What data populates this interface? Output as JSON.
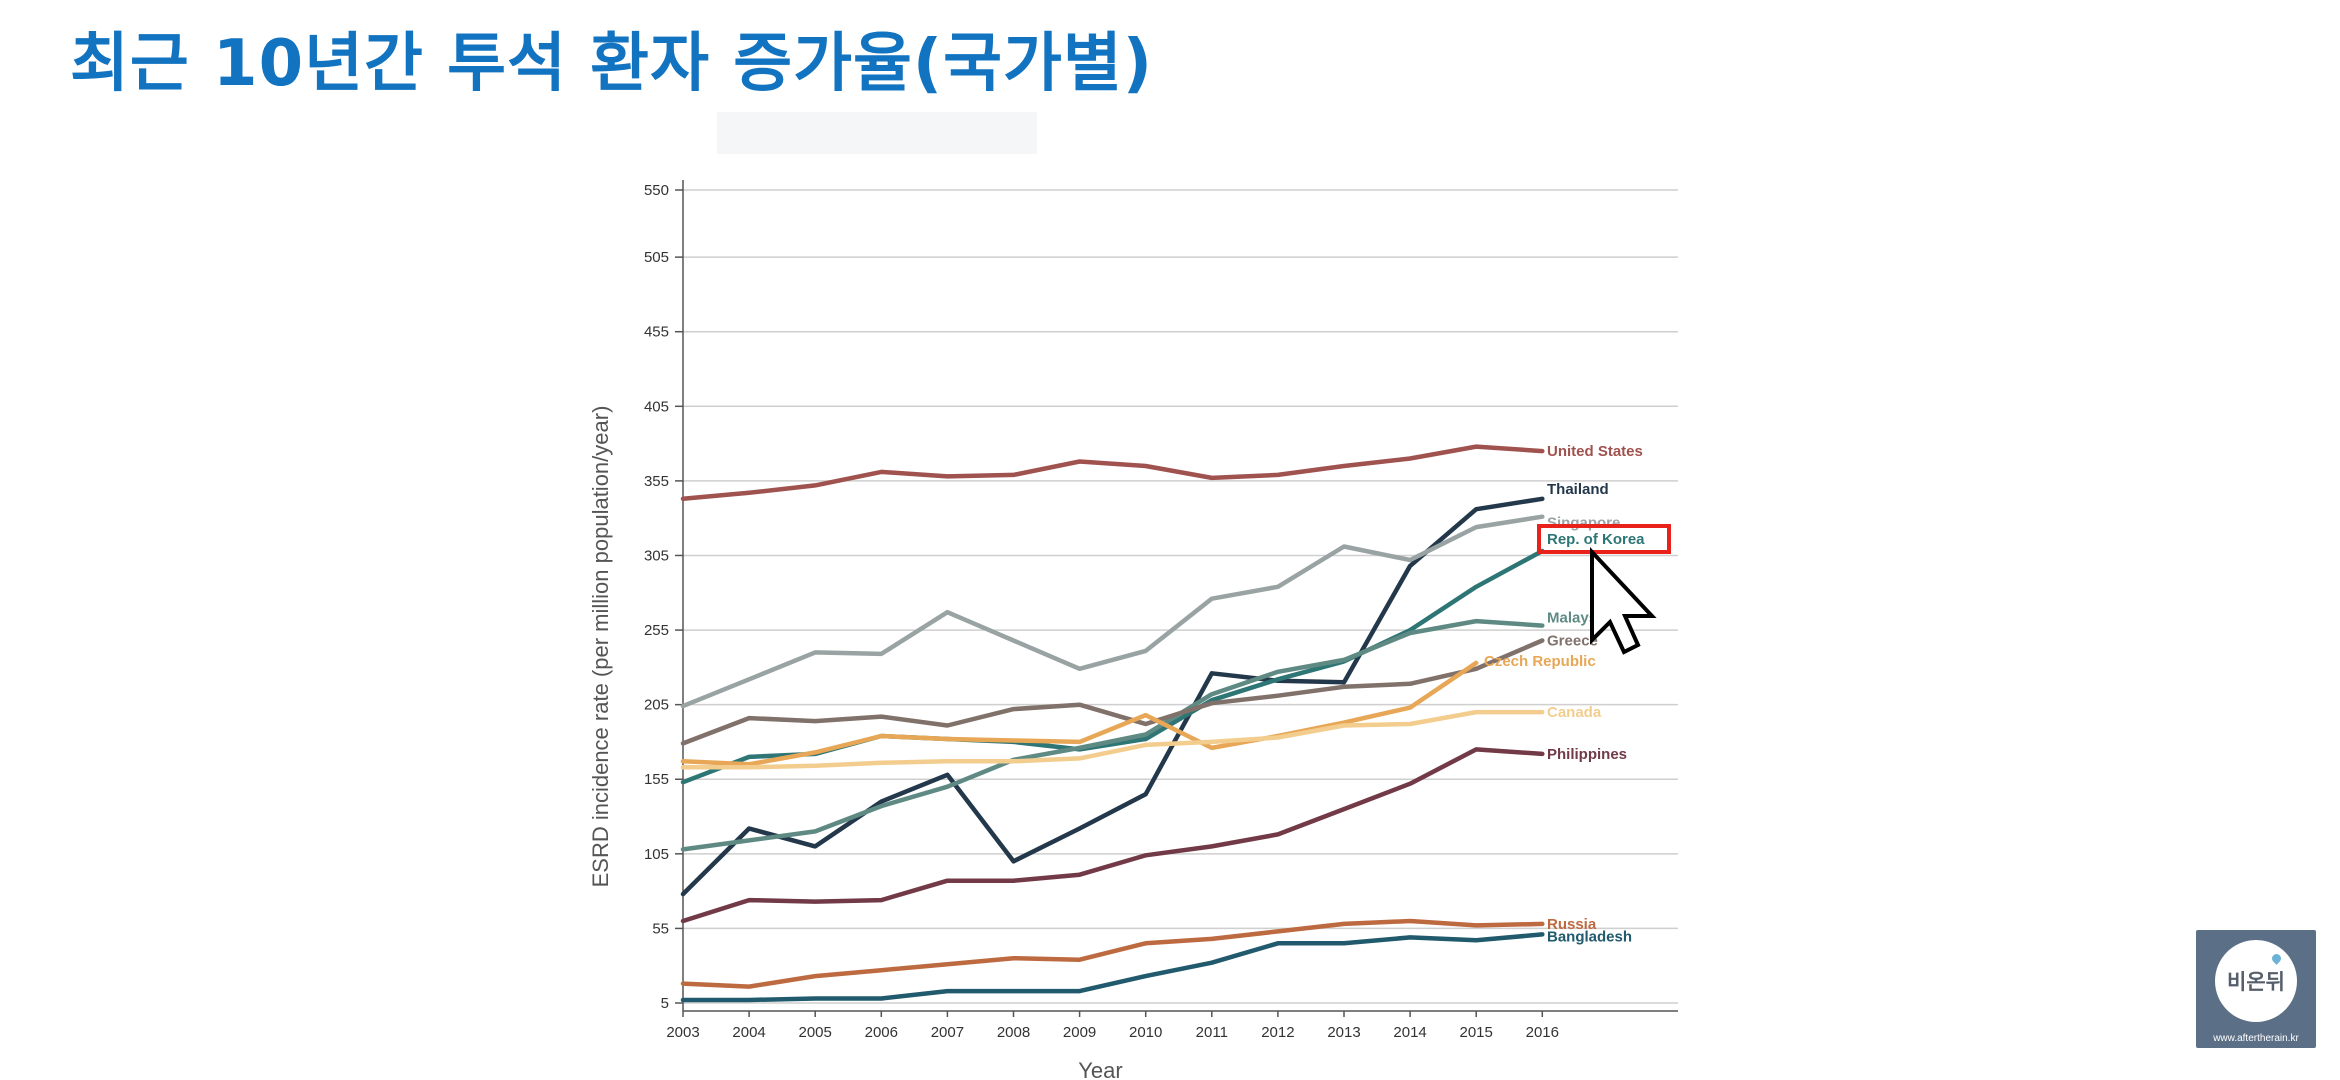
{
  "slide": {
    "title": "최근 10년간 투석 환자 증가율(국가별)"
  },
  "chart_data": {
    "type": "line",
    "title": "",
    "xlabel": "Year",
    "ylabel": "ESRD incidence rate (per million population/year)",
    "x": [
      2003,
      2004,
      2005,
      2006,
      2007,
      2008,
      2009,
      2010,
      2011,
      2012,
      2013,
      2014,
      2015,
      2016
    ],
    "yticks": [
      5,
      55,
      105,
      155,
      205,
      255,
      305,
      355,
      405,
      455,
      505,
      550
    ],
    "ylim": [
      5,
      550
    ],
    "grid": true,
    "highlight": "Rep. of Korea",
    "series": [
      {
        "name": "United States",
        "color": "#a0524f",
        "values": [
          343,
          347,
          352,
          361,
          358,
          359,
          368,
          365,
          357,
          359,
          365,
          370,
          378,
          375
        ]
      },
      {
        "name": "Thailand",
        "color": "#23384a",
        "values": [
          78,
          122,
          110,
          140,
          158,
          100,
          122,
          145,
          226,
          221,
          220,
          298,
          336,
          343
        ]
      },
      {
        "name": "Singapore",
        "color": "#9aa3a3",
        "values": [
          204,
          222,
          240,
          239,
          267,
          248,
          229,
          241,
          276,
          284,
          311,
          302,
          324,
          331
        ]
      },
      {
        "name": "Rep. of Korea",
        "color": "#2e7575",
        "values": [
          153,
          170,
          172,
          184,
          182,
          180,
          175,
          182,
          208,
          222,
          234,
          255,
          284,
          308
        ]
      },
      {
        "name": "Malaysia",
        "color": "#5f8a84",
        "values": [
          108,
          114,
          120,
          137,
          150,
          168,
          176,
          185,
          212,
          227,
          235,
          253,
          261,
          258
        ]
      },
      {
        "name": "Greece",
        "color": "#80716a",
        "values": [
          179,
          196,
          194,
          197,
          191,
          202,
          205,
          192,
          206,
          211,
          217,
          219,
          229,
          248
        ]
      },
      {
        "name": "Czech Republic",
        "color": "#e8a756",
        "values": [
          167,
          165,
          173,
          184,
          182,
          181,
          180,
          198,
          176,
          184,
          193,
          203,
          233,
          null
        ]
      },
      {
        "name": "Canada",
        "color": "#f3cd8e",
        "values": [
          163,
          163,
          164,
          166,
          167,
          167,
          169,
          178,
          180,
          183,
          191,
          192,
          200,
          200
        ]
      },
      {
        "name": "Philippines",
        "color": "#723a47",
        "values": [
          60,
          74,
          73,
          74,
          87,
          87,
          91,
          104,
          110,
          118,
          135,
          152,
          175,
          172
        ]
      },
      {
        "name": "Russia",
        "color": "#bd6a40",
        "values": [
          18,
          16,
          23,
          27,
          31,
          35,
          34,
          45,
          48,
          53,
          58,
          60,
          57,
          58
        ]
      },
      {
        "name": "Bangladesh",
        "color": "#205a6c",
        "values": [
          7,
          7,
          8,
          8,
          13,
          13,
          13,
          23,
          32,
          45,
          45,
          49,
          47,
          51
        ]
      }
    ]
  },
  "logo": {
    "text": "비온뒤",
    "url": "www.aftertherain.kr"
  }
}
